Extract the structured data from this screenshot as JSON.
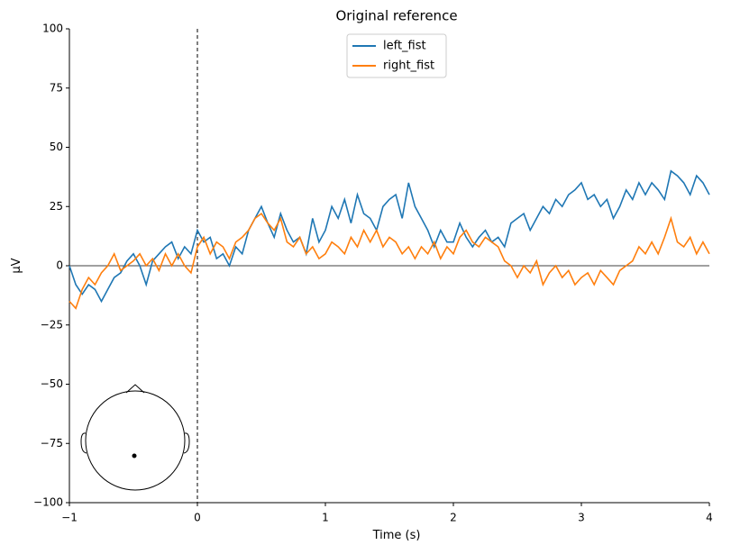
{
  "chart_data": {
    "type": "line",
    "title": "Original reference",
    "xlabel": "Time (s)",
    "ylabel": "µV",
    "x": [
      -1.0,
      -0.95,
      -0.9,
      -0.85,
      -0.8,
      -0.75,
      -0.7,
      -0.65,
      -0.6,
      -0.55,
      -0.5,
      -0.45,
      -0.4,
      -0.35,
      -0.3,
      -0.25,
      -0.2,
      -0.15,
      -0.1,
      -0.05,
      0.0,
      0.05,
      0.1,
      0.15,
      0.2,
      0.25,
      0.3,
      0.35,
      0.4,
      0.45,
      0.5,
      0.55,
      0.6,
      0.65,
      0.7,
      0.75,
      0.8,
      0.85,
      0.9,
      0.95,
      1.0,
      1.05,
      1.1,
      1.15,
      1.2,
      1.25,
      1.3,
      1.35,
      1.4,
      1.45,
      1.5,
      1.55,
      1.6,
      1.65,
      1.7,
      1.75,
      1.8,
      1.85,
      1.9,
      1.95,
      2.0,
      2.05,
      2.1,
      2.15,
      2.2,
      2.25,
      2.3,
      2.35,
      2.4,
      2.45,
      2.5,
      2.55,
      2.6,
      2.65,
      2.7,
      2.75,
      2.8,
      2.85,
      2.9,
      2.95,
      3.0,
      3.05,
      3.1,
      3.15,
      3.2,
      3.25,
      3.3,
      3.35,
      3.4,
      3.45,
      3.5,
      3.55,
      3.6,
      3.65,
      3.7,
      3.75,
      3.8,
      3.85,
      3.9,
      3.95,
      4.0
    ],
    "series": [
      {
        "name": "left_fist",
        "color": "#1f77b4",
        "values": [
          0,
          -8,
          -12,
          -8,
          -10,
          -15,
          -10,
          -5,
          -3,
          2,
          5,
          0,
          -8,
          2,
          5,
          8,
          10,
          3,
          8,
          5,
          15,
          10,
          12,
          3,
          5,
          0,
          8,
          5,
          15,
          20,
          25,
          18,
          12,
          22,
          15,
          10,
          12,
          5,
          20,
          10,
          15,
          25,
          20,
          28,
          18,
          30,
          22,
          20,
          15,
          25,
          28,
          30,
          20,
          35,
          25,
          20,
          15,
          8,
          15,
          10,
          10,
          18,
          12,
          8,
          12,
          15,
          10,
          12,
          8,
          18,
          20,
          22,
          15,
          20,
          25,
          22,
          28,
          25,
          30,
          32,
          35,
          28,
          30,
          25,
          28,
          20,
          25,
          32,
          28,
          35,
          30,
          35,
          32,
          28,
          40,
          38,
          35,
          30,
          38,
          35,
          30
        ]
      },
      {
        "name": "right_fist",
        "color": "#ff7f0e",
        "values": [
          -15,
          -18,
          -10,
          -5,
          -8,
          -3,
          0,
          5,
          -2,
          0,
          2,
          5,
          0,
          3,
          -2,
          5,
          0,
          5,
          0,
          -3,
          8,
          12,
          5,
          10,
          8,
          3,
          10,
          12,
          15,
          20,
          22,
          18,
          15,
          20,
          10,
          8,
          12,
          5,
          8,
          3,
          5,
          10,
          8,
          5,
          12,
          8,
          15,
          10,
          15,
          8,
          12,
          10,
          5,
          8,
          3,
          8,
          5,
          10,
          3,
          8,
          5,
          12,
          15,
          10,
          8,
          12,
          10,
          8,
          2,
          0,
          -5,
          0,
          -3,
          2,
          -8,
          -3,
          0,
          -5,
          -2,
          -8,
          -5,
          -3,
          -8,
          -2,
          -5,
          -8,
          -2,
          0,
          2,
          8,
          5,
          10,
          5,
          12,
          20,
          10,
          8,
          12,
          5,
          10,
          5
        ]
      }
    ],
    "xlim": [
      -1,
      4
    ],
    "ylim": [
      -100,
      100
    ],
    "xticks": [
      {
        "value": -1,
        "label": "−1"
      },
      0,
      1,
      2,
      3,
      4
    ],
    "yticks": [
      {
        "value": -100,
        "label": "−100"
      },
      {
        "value": -75,
        "label": "−75"
      },
      {
        "value": -50,
        "label": "−50"
      },
      {
        "value": -25,
        "label": "−25"
      },
      0,
      25,
      50,
      75,
      100
    ],
    "legend": "upper center",
    "zero_lines": true
  }
}
